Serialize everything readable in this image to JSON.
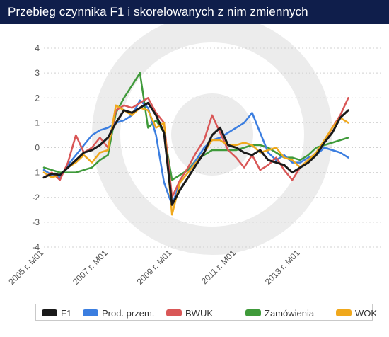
{
  "title": "Przebieg czynnika F1 i skorelowanych z nim zmiennych",
  "chart_data": {
    "type": "line",
    "title": "Przebieg czynnika F1 i skorelowanych z nim zmiennych",
    "xlabel": "",
    "ylabel": "",
    "x_start": "2005-01",
    "x_end": "2014-09",
    "x_tick_labels": [
      "2005 r. M01",
      "2007 r. M01",
      "2009 r. M01",
      "2011 r. M01",
      "2013 r. M01"
    ],
    "x_tick_dates": [
      "2005-01",
      "2007-01",
      "2009-01",
      "2011-01",
      "2013-01"
    ],
    "y_ticks": [
      4,
      3,
      2,
      1,
      0,
      -1,
      -2,
      -3,
      -4
    ],
    "ylim": [
      -4,
      4
    ],
    "grid": "horizontal dotted",
    "legend_position": "bottom",
    "series": [
      {
        "name": "F1",
        "color": "#1a1a1a",
        "points": [
          [
            "2005-01",
            -1.2
          ],
          [
            "2005-04",
            -1.05
          ],
          [
            "2005-07",
            -1.1
          ],
          [
            "2005-10",
            -0.8
          ],
          [
            "2006-01",
            -0.5
          ],
          [
            "2006-04",
            -0.2
          ],
          [
            "2006-07",
            -0.1
          ],
          [
            "2006-10",
            0.1
          ],
          [
            "2007-01",
            0.4
          ],
          [
            "2007-04",
            1.0
          ],
          [
            "2007-07",
            1.5
          ],
          [
            "2007-10",
            1.4
          ],
          [
            "2008-01",
            1.6
          ],
          [
            "2008-04",
            1.8
          ],
          [
            "2008-07",
            1.3
          ],
          [
            "2008-10",
            0.6
          ],
          [
            "2009-01",
            -2.3
          ],
          [
            "2009-04",
            -1.7
          ],
          [
            "2009-07",
            -1.2
          ],
          [
            "2009-10",
            -0.7
          ],
          [
            "2010-01",
            -0.2
          ],
          [
            "2010-04",
            0.5
          ],
          [
            "2010-07",
            0.8
          ],
          [
            "2010-10",
            0.1
          ],
          [
            "2011-01",
            0.0
          ],
          [
            "2011-04",
            -0.2
          ],
          [
            "2011-07",
            -0.3
          ],
          [
            "2011-10",
            -0.1
          ],
          [
            "2012-01",
            -0.5
          ],
          [
            "2012-04",
            -0.6
          ],
          [
            "2012-07",
            -0.7
          ],
          [
            "2012-10",
            -1.0
          ],
          [
            "2013-01",
            -0.8
          ],
          [
            "2013-04",
            -0.6
          ],
          [
            "2013-07",
            -0.3
          ],
          [
            "2013-10",
            0.2
          ],
          [
            "2014-01",
            0.6
          ],
          [
            "2014-04",
            1.2
          ],
          [
            "2014-07",
            1.5
          ]
        ]
      },
      {
        "name": "Prod. przem.",
        "color": "#3b7ee0",
        "points": [
          [
            "2005-01",
            -0.9
          ],
          [
            "2005-04",
            -1.1
          ],
          [
            "2005-07",
            -1.2
          ],
          [
            "2005-10",
            -0.7
          ],
          [
            "2006-01",
            -0.3
          ],
          [
            "2006-04",
            0.1
          ],
          [
            "2006-07",
            0.5
          ],
          [
            "2006-10",
            0.7
          ],
          [
            "2007-01",
            0.8
          ],
          [
            "2007-04",
            1.0
          ],
          [
            "2007-07",
            1.1
          ],
          [
            "2007-10",
            1.3
          ],
          [
            "2008-01",
            1.9
          ],
          [
            "2008-04",
            1.6
          ],
          [
            "2008-07",
            0.5
          ],
          [
            "2008-10",
            -1.4
          ],
          [
            "2009-01",
            -2.3
          ],
          [
            "2009-04",
            -1.4
          ],
          [
            "2009-07",
            -1.0
          ],
          [
            "2009-10",
            -0.5
          ],
          [
            "2010-01",
            0.0
          ],
          [
            "2010-04",
            0.3
          ],
          [
            "2010-07",
            0.4
          ],
          [
            "2010-10",
            0.6
          ],
          [
            "2011-01",
            0.8
          ],
          [
            "2011-04",
            1.0
          ],
          [
            "2011-07",
            1.4
          ],
          [
            "2011-10",
            0.6
          ],
          [
            "2012-01",
            -0.2
          ],
          [
            "2012-04",
            -0.5
          ],
          [
            "2012-07",
            -0.3
          ],
          [
            "2012-10",
            -0.6
          ],
          [
            "2013-01",
            -0.6
          ],
          [
            "2013-04",
            -0.4
          ],
          [
            "2013-07",
            -0.3
          ],
          [
            "2013-10",
            0.0
          ],
          [
            "2014-01",
            -0.1
          ],
          [
            "2014-04",
            -0.2
          ],
          [
            "2014-07",
            -0.4
          ]
        ]
      },
      {
        "name": "BWUK",
        "color": "#d95757",
        "points": [
          [
            "2005-01",
            -1.2
          ],
          [
            "2005-04",
            -1.0
          ],
          [
            "2005-07",
            -1.3
          ],
          [
            "2005-10",
            -0.6
          ],
          [
            "2006-01",
            0.5
          ],
          [
            "2006-04",
            -0.2
          ],
          [
            "2006-07",
            0.0
          ],
          [
            "2006-10",
            0.4
          ],
          [
            "2007-01",
            0.0
          ],
          [
            "2007-04",
            1.5
          ],
          [
            "2007-07",
            1.7
          ],
          [
            "2007-10",
            1.6
          ],
          [
            "2008-01",
            1.8
          ],
          [
            "2008-04",
            2.0
          ],
          [
            "2008-07",
            1.4
          ],
          [
            "2008-10",
            1.0
          ],
          [
            "2009-01",
            -2.0
          ],
          [
            "2009-04",
            -1.3
          ],
          [
            "2009-07",
            -0.8
          ],
          [
            "2009-10",
            -0.2
          ],
          [
            "2010-01",
            0.3
          ],
          [
            "2010-04",
            1.3
          ],
          [
            "2010-07",
            0.6
          ],
          [
            "2010-10",
            -0.1
          ],
          [
            "2011-01",
            -0.4
          ],
          [
            "2011-04",
            -0.8
          ],
          [
            "2011-07",
            -0.3
          ],
          [
            "2011-10",
            -0.9
          ],
          [
            "2012-01",
            -0.7
          ],
          [
            "2012-04",
            -0.4
          ],
          [
            "2012-07",
            -0.9
          ],
          [
            "2012-10",
            -1.3
          ],
          [
            "2013-01",
            -0.8
          ],
          [
            "2013-04",
            -0.5
          ],
          [
            "2013-07",
            -0.2
          ],
          [
            "2013-10",
            0.2
          ],
          [
            "2014-01",
            0.8
          ],
          [
            "2014-04",
            1.3
          ],
          [
            "2014-07",
            2.0
          ]
        ]
      },
      {
        "name": "Zamówienia",
        "color": "#3f9a3a",
        "points": [
          [
            "2005-01",
            -0.8
          ],
          [
            "2005-04",
            -0.9
          ],
          [
            "2005-07",
            -1.0
          ],
          [
            "2005-10",
            -1.0
          ],
          [
            "2006-01",
            -1.0
          ],
          [
            "2006-04",
            -0.9
          ],
          [
            "2006-07",
            -0.8
          ],
          [
            "2006-10",
            -0.5
          ],
          [
            "2007-01",
            -0.3
          ],
          [
            "2007-04",
            1.4
          ],
          [
            "2007-07",
            2.0
          ],
          [
            "2007-10",
            2.5
          ],
          [
            "2008-01",
            3.0
          ],
          [
            "2008-04",
            0.8
          ],
          [
            "2008-07",
            1.1
          ],
          [
            "2008-10",
            0.6
          ],
          [
            "2009-01",
            -1.3
          ],
          [
            "2009-04",
            -1.1
          ],
          [
            "2009-07",
            -0.9
          ],
          [
            "2009-10",
            -0.5
          ],
          [
            "2010-01",
            -0.3
          ],
          [
            "2010-04",
            -0.1
          ],
          [
            "2010-07",
            -0.1
          ],
          [
            "2010-10",
            -0.1
          ],
          [
            "2011-01",
            -0.1
          ],
          [
            "2011-04",
            0.0
          ],
          [
            "2011-07",
            0.1
          ],
          [
            "2011-10",
            0.1
          ],
          [
            "2012-01",
            0.0
          ],
          [
            "2012-04",
            -0.2
          ],
          [
            "2012-07",
            -0.4
          ],
          [
            "2012-10",
            -0.4
          ],
          [
            "2013-01",
            -0.5
          ],
          [
            "2013-04",
            -0.3
          ],
          [
            "2013-07",
            0.0
          ],
          [
            "2013-10",
            0.1
          ],
          [
            "2014-01",
            0.2
          ],
          [
            "2014-04",
            0.3
          ],
          [
            "2014-07",
            0.4
          ]
        ]
      },
      {
        "name": "WOK",
        "color": "#f0a81c",
        "points": [
          [
            "2005-01",
            -1.0
          ],
          [
            "2005-04",
            -1.2
          ],
          [
            "2005-07",
            -1.1
          ],
          [
            "2005-10",
            -0.8
          ],
          [
            "2006-01",
            -0.6
          ],
          [
            "2006-04",
            -0.3
          ],
          [
            "2006-07",
            -0.6
          ],
          [
            "2006-10",
            -0.2
          ],
          [
            "2007-01",
            -0.1
          ],
          [
            "2007-04",
            1.7
          ],
          [
            "2007-07",
            1.5
          ],
          [
            "2007-10",
            1.3
          ],
          [
            "2008-01",
            1.6
          ],
          [
            "2008-04",
            1.5
          ],
          [
            "2008-07",
            0.8
          ],
          [
            "2008-10",
            1.0
          ],
          [
            "2009-01",
            -2.7
          ],
          [
            "2009-04",
            -1.4
          ],
          [
            "2009-07",
            -1.0
          ],
          [
            "2009-10",
            -0.6
          ],
          [
            "2010-01",
            -0.2
          ],
          [
            "2010-04",
            0.3
          ],
          [
            "2010-07",
            0.3
          ],
          [
            "2010-10",
            0.1
          ],
          [
            "2011-01",
            0.1
          ],
          [
            "2011-04",
            0.2
          ],
          [
            "2011-07",
            0.1
          ],
          [
            "2011-10",
            -0.2
          ],
          [
            "2012-01",
            -0.1
          ],
          [
            "2012-04",
            0.0
          ],
          [
            "2012-07",
            -0.4
          ],
          [
            "2012-10",
            -0.5
          ],
          [
            "2013-01",
            -0.8
          ],
          [
            "2013-04",
            -0.5
          ],
          [
            "2013-07",
            -0.2
          ],
          [
            "2013-10",
            0.3
          ],
          [
            "2014-01",
            0.8
          ],
          [
            "2014-04",
            1.2
          ],
          [
            "2014-07",
            1.0
          ]
        ]
      }
    ]
  },
  "colors": {
    "title_bar": "#0f1e4b",
    "axis_text": "#555555",
    "grid": "#d0d0d0",
    "watermark": "#ececec"
  }
}
